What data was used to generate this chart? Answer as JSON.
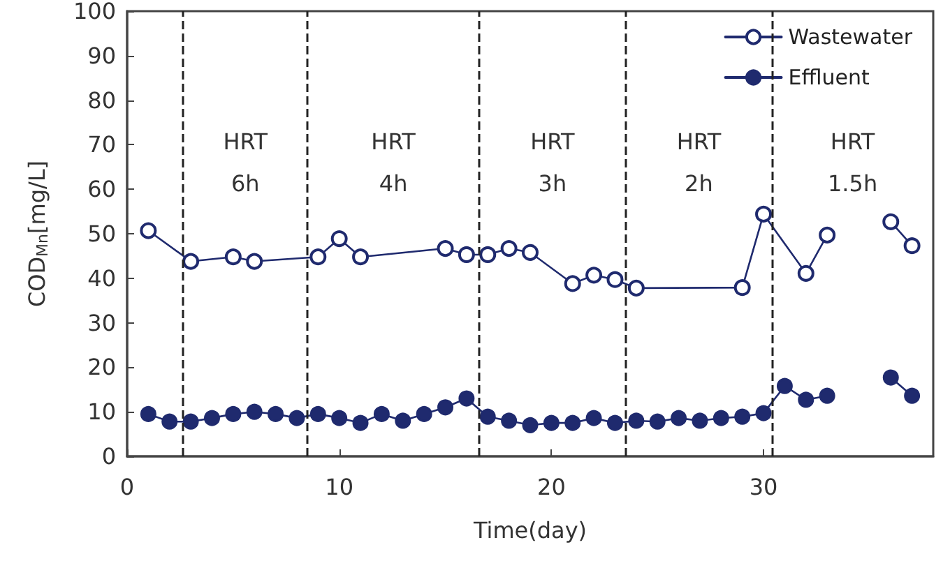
{
  "chart_data": {
    "type": "line",
    "xlabel": "Time(day)",
    "ylabel": "COD$_{Mn}$[mg/L]",
    "xlim": [
      0,
      38
    ],
    "xticks": [
      0,
      10,
      20,
      30
    ],
    "ylim": [
      0,
      100
    ],
    "yticks": [
      0,
      10,
      20,
      30,
      40,
      50,
      60,
      70,
      80,
      90,
      100
    ],
    "grid": false,
    "legend": "top right",
    "line_style": "solid",
    "series": [
      {
        "name": "Wastewater",
        "color": "#1f2a6e",
        "marker": "open circle",
        "x": [
          1,
          3,
          5,
          6,
          9,
          10,
          11,
          15,
          16,
          17,
          18,
          19,
          21,
          22,
          23,
          24,
          29,
          30,
          32,
          33,
          34,
          36,
          37
        ],
        "values": [
          50.7,
          43.8,
          44.8,
          43.8,
          44.8,
          48.9,
          44.8,
          46.7,
          45.3,
          45.3,
          46.7,
          45.8,
          38.8,
          40.7,
          39.7,
          37.8,
          37.9,
          54.4,
          41.1,
          49.7,
          null,
          52.7,
          47.3
        ]
      },
      {
        "name": "Effluent",
        "color": "#1f2a6e",
        "marker": "circle",
        "x": [
          1,
          2,
          3,
          4,
          5,
          6,
          7,
          8,
          9,
          10,
          11,
          12,
          13,
          14,
          15,
          16,
          17,
          18,
          19,
          20,
          21,
          22,
          23,
          24,
          25,
          26,
          27,
          28,
          29,
          30,
          31,
          32,
          33,
          34,
          36,
          37
        ],
        "values": [
          9.5,
          7.8,
          7.8,
          8.6,
          9.5,
          10,
          9.5,
          8.6,
          9.5,
          8.6,
          7.5,
          9.5,
          8,
          9.5,
          11,
          13,
          8.9,
          8,
          7,
          7.5,
          7.5,
          8.6,
          7.5,
          8,
          7.8,
          8.6,
          8,
          8.6,
          8.9,
          9.7,
          15.8,
          12.7,
          13.6,
          null,
          17.7,
          13.6
        ]
      }
    ],
    "ref_lines": [
      {
        "axis": "x",
        "value": 2.65,
        "line_style": "dashed",
        "color": "#222222"
      },
      {
        "axis": "x",
        "value": 8.5,
        "line_style": "dashed",
        "color": "#222222"
      },
      {
        "axis": "x",
        "value": 16.6,
        "line_style": "dashed",
        "color": "#222222"
      },
      {
        "axis": "x",
        "value": 23.5,
        "line_style": "dashed",
        "color": "#222222"
      },
      {
        "axis": "x",
        "value": 30.4,
        "line_style": "dashed",
        "color": "#222222"
      }
    ],
    "annotations": [
      "HRT\n6h",
      "HRT\n4h",
      "HRT\n3h",
      "HRT\n2h",
      "HRT\n1.5h"
    ]
  }
}
